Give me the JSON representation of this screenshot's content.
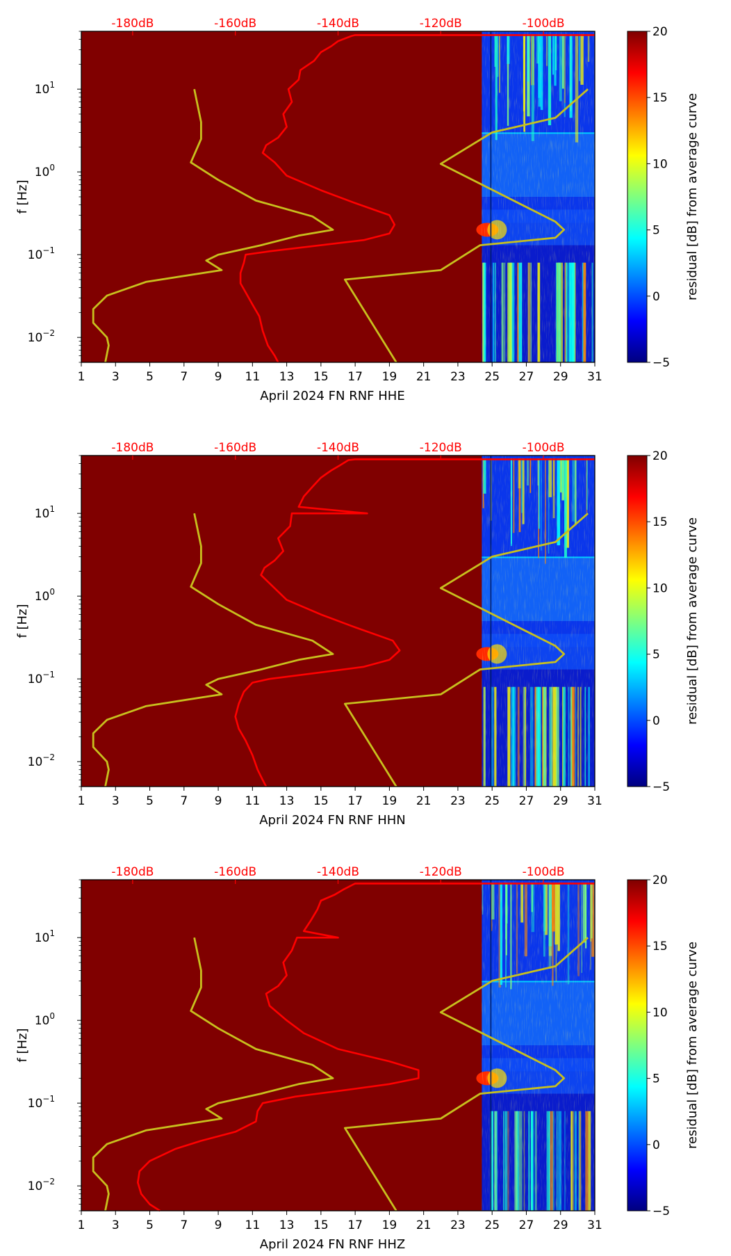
{
  "colors": {
    "background": "#800000",
    "psd_curve": "#ff0000",
    "noise_model": "#c8c01e",
    "top_axis": "#ff0000",
    "colormap": [
      "#00007f",
      "#0000ff",
      "#007fff",
      "#00ffff",
      "#7fff7f",
      "#ffff00",
      "#ff7f00",
      "#ff0000",
      "#7f0000"
    ]
  },
  "chart_data": [
    {
      "type": "heatmap",
      "panel": 1,
      "xlabel": "April 2024 FN RNF  HHE",
      "ylabel": "f [Hz]",
      "xlim": [
        1,
        31
      ],
      "ylim_hz": [
        0.005,
        50
      ],
      "x_ticks": [
        "1",
        "3",
        "5",
        "7",
        "9",
        "11",
        "13",
        "15",
        "17",
        "19",
        "21",
        "23",
        "25",
        "27",
        "29",
        "31"
      ],
      "y_ticks": [
        {
          "value": 0.01,
          "base": "10",
          "exp": "−2"
        },
        {
          "value": 0.1,
          "base": "10",
          "exp": "−1"
        },
        {
          "value": 1,
          "base": "10",
          "exp": "0"
        },
        {
          "value": 10,
          "base": "10",
          "exp": "1"
        }
      ],
      "top_axis": {
        "labels": [
          "-180dB",
          "-160dB",
          "-140dB",
          "-120dB",
          "-100dB"
        ],
        "values": [
          -180,
          -160,
          -140,
          -120,
          -100
        ],
        "db_range": [
          -190,
          -90
        ]
      },
      "data_start_day": 24.4,
      "colorbar": {
        "label": "residual [dB] from average curve",
        "min": -5,
        "max": 20,
        "ticks": [
          "20",
          "15",
          "10",
          "5",
          "0",
          "−5"
        ]
      },
      "psd_curve": [
        [
          12.5,
          0.005
        ],
        [
          12.3,
          0.006
        ],
        [
          11.9,
          0.008
        ],
        [
          11.6,
          0.012
        ],
        [
          11.4,
          0.018
        ],
        [
          11.0,
          0.025
        ],
        [
          10.6,
          0.035
        ],
        [
          10.3,
          0.045
        ],
        [
          10.3,
          0.06
        ],
        [
          10.5,
          0.08
        ],
        [
          10.6,
          0.1
        ],
        [
          12,
          0.11
        ],
        [
          15,
          0.13
        ],
        [
          17.5,
          0.15
        ],
        [
          19,
          0.18
        ],
        [
          19.3,
          0.23
        ],
        [
          19,
          0.3
        ],
        [
          17,
          0.42
        ],
        [
          15,
          0.6
        ],
        [
          13,
          0.9
        ],
        [
          12.3,
          1.3
        ],
        [
          11.6,
          1.7
        ],
        [
          11.8,
          2.1
        ],
        [
          12.5,
          2.6
        ],
        [
          13,
          3.5
        ],
        [
          12.8,
          5
        ],
        [
          13.3,
          7
        ],
        [
          13.1,
          10
        ],
        [
          13.7,
          13
        ],
        [
          13.8,
          17
        ],
        [
          14.6,
          22
        ],
        [
          15,
          28
        ],
        [
          15.6,
          33
        ],
        [
          16,
          38
        ],
        [
          16.8,
          44
        ],
        [
          17,
          45
        ],
        [
          31,
          45
        ]
      ],
      "noise_model_low": [
        [
          2.4,
          0.005
        ],
        [
          2.6,
          0.008
        ],
        [
          2.5,
          0.01
        ],
        [
          1.7,
          0.015
        ],
        [
          1.7,
          0.022
        ],
        [
          2.5,
          0.032
        ],
        [
          4.8,
          0.047
        ],
        [
          9.2,
          0.065
        ],
        [
          8.3,
          0.085
        ],
        [
          9,
          0.1
        ],
        [
          11.5,
          0.13
        ],
        [
          13.7,
          0.17
        ],
        [
          15.7,
          0.2
        ],
        [
          14.5,
          0.29
        ],
        [
          11.2,
          0.45
        ],
        [
          9,
          0.8
        ],
        [
          7.4,
          1.3
        ],
        [
          8,
          2.5
        ],
        [
          8,
          4
        ],
        [
          7.6,
          10
        ]
      ],
      "noise_model_high": [
        [
          19.4,
          0.005
        ],
        [
          16.4,
          0.05
        ],
        [
          22,
          0.065
        ],
        [
          24.3,
          0.13
        ],
        [
          28.7,
          0.16
        ],
        [
          29.2,
          0.2
        ],
        [
          28.7,
          0.25
        ],
        [
          22,
          1.25
        ],
        [
          25,
          3
        ],
        [
          28.7,
          4.5
        ],
        [
          30.6,
          10
        ]
      ]
    },
    {
      "type": "heatmap",
      "panel": 2,
      "xlabel": "April 2024 FN RNF  HHN",
      "ylabel": "f [Hz]",
      "xlim": [
        1,
        31
      ],
      "ylim_hz": [
        0.005,
        50
      ],
      "x_ticks": [
        "1",
        "3",
        "5",
        "7",
        "9",
        "11",
        "13",
        "15",
        "17",
        "19",
        "21",
        "23",
        "25",
        "27",
        "29",
        "31"
      ],
      "y_ticks": [
        {
          "value": 0.01,
          "base": "10",
          "exp": "−2"
        },
        {
          "value": 0.1,
          "base": "10",
          "exp": "−1"
        },
        {
          "value": 1,
          "base": "10",
          "exp": "0"
        },
        {
          "value": 10,
          "base": "10",
          "exp": "1"
        }
      ],
      "top_axis": {
        "labels": [
          "-180dB",
          "-160dB",
          "-140dB",
          "-120dB",
          "-100dB"
        ],
        "values": [
          -180,
          -160,
          -140,
          -120,
          -100
        ],
        "db_range": [
          -190,
          -90
        ]
      },
      "data_start_day": 24.4,
      "colorbar": {
        "label": "residual [dB] from average curve",
        "min": -5,
        "max": 20,
        "ticks": [
          "20",
          "15",
          "10",
          "5",
          "0",
          "−5"
        ]
      },
      "psd_curve": [
        [
          11.8,
          0.005
        ],
        [
          11.6,
          0.006
        ],
        [
          11.3,
          0.008
        ],
        [
          11,
          0.012
        ],
        [
          10.6,
          0.018
        ],
        [
          10.2,
          0.025
        ],
        [
          10,
          0.035
        ],
        [
          10.2,
          0.05
        ],
        [
          10.5,
          0.07
        ],
        [
          11,
          0.09
        ],
        [
          12,
          0.1
        ],
        [
          15,
          0.12
        ],
        [
          17.5,
          0.14
        ],
        [
          19,
          0.17
        ],
        [
          19.6,
          0.22
        ],
        [
          19.2,
          0.29
        ],
        [
          17,
          0.42
        ],
        [
          15,
          0.6
        ],
        [
          13,
          0.9
        ],
        [
          12.2,
          1.3
        ],
        [
          11.5,
          1.8
        ],
        [
          11.7,
          2.2
        ],
        [
          12.3,
          2.7
        ],
        [
          12.8,
          3.5
        ],
        [
          12.5,
          5
        ],
        [
          13.2,
          7
        ],
        [
          13.3,
          10
        ],
        [
          17.7,
          10
        ],
        [
          13.7,
          12
        ],
        [
          14,
          16
        ],
        [
          14.6,
          22
        ],
        [
          15,
          27
        ],
        [
          15.6,
          33
        ],
        [
          16.1,
          38
        ],
        [
          16.6,
          44
        ],
        [
          17,
          45
        ],
        [
          31,
          45
        ]
      ],
      "noise_model_low": [
        [
          2.4,
          0.005
        ],
        [
          2.6,
          0.008
        ],
        [
          2.5,
          0.01
        ],
        [
          1.7,
          0.015
        ],
        [
          1.7,
          0.022
        ],
        [
          2.5,
          0.032
        ],
        [
          4.8,
          0.047
        ],
        [
          9.2,
          0.065
        ],
        [
          8.3,
          0.085
        ],
        [
          9,
          0.1
        ],
        [
          11.5,
          0.13
        ],
        [
          13.7,
          0.17
        ],
        [
          15.7,
          0.2
        ],
        [
          14.5,
          0.29
        ],
        [
          11.2,
          0.45
        ],
        [
          9,
          0.8
        ],
        [
          7.4,
          1.3
        ],
        [
          8,
          2.5
        ],
        [
          8,
          4
        ],
        [
          7.6,
          10
        ]
      ],
      "noise_model_high": [
        [
          19.4,
          0.005
        ],
        [
          16.4,
          0.05
        ],
        [
          22,
          0.065
        ],
        [
          24.3,
          0.13
        ],
        [
          28.7,
          0.16
        ],
        [
          29.2,
          0.2
        ],
        [
          28.7,
          0.25
        ],
        [
          22,
          1.25
        ],
        [
          25,
          3
        ],
        [
          28.7,
          4.5
        ],
        [
          30.6,
          10
        ]
      ]
    },
    {
      "type": "heatmap",
      "panel": 3,
      "xlabel": "April 2024 FN RNF  HHZ",
      "ylabel": "f [Hz]",
      "xlim": [
        1,
        31
      ],
      "ylim_hz": [
        0.005,
        50
      ],
      "x_ticks": [
        "1",
        "3",
        "5",
        "7",
        "9",
        "11",
        "13",
        "15",
        "17",
        "19",
        "21",
        "23",
        "25",
        "27",
        "29",
        "31"
      ],
      "y_ticks": [
        {
          "value": 0.01,
          "base": "10",
          "exp": "−2"
        },
        {
          "value": 0.1,
          "base": "10",
          "exp": "−1"
        },
        {
          "value": 1,
          "base": "10",
          "exp": "0"
        },
        {
          "value": 10,
          "base": "10",
          "exp": "1"
        }
      ],
      "top_axis": {
        "labels": [
          "-180dB",
          "-160dB",
          "-140dB",
          "-120dB",
          "-100dB"
        ],
        "values": [
          -180,
          -160,
          -140,
          -120,
          -100
        ],
        "db_range": [
          -190,
          -90
        ]
      },
      "data_start_day": 24.4,
      "colorbar": {
        "label": "residual [dB] from average curve",
        "min": -5,
        "max": 20,
        "ticks": [
          "20",
          "15",
          "10",
          "5",
          "0",
          "−5"
        ]
      },
      "psd_curve": [
        [
          5.6,
          0.005
        ],
        [
          5,
          0.006
        ],
        [
          4.5,
          0.008
        ],
        [
          4.3,
          0.011
        ],
        [
          4.4,
          0.015
        ],
        [
          5,
          0.02
        ],
        [
          6.5,
          0.028
        ],
        [
          8,
          0.035
        ],
        [
          10,
          0.045
        ],
        [
          11.2,
          0.06
        ],
        [
          11.3,
          0.08
        ],
        [
          11.6,
          0.1
        ],
        [
          13.5,
          0.12
        ],
        [
          16,
          0.14
        ],
        [
          19,
          0.17
        ],
        [
          20.7,
          0.2
        ],
        [
          20.7,
          0.25
        ],
        [
          19,
          0.32
        ],
        [
          16,
          0.45
        ],
        [
          14,
          0.7
        ],
        [
          13,
          1
        ],
        [
          12,
          1.5
        ],
        [
          11.8,
          2.1
        ],
        [
          12.5,
          2.6
        ],
        [
          13,
          3.5
        ],
        [
          12.8,
          5
        ],
        [
          13.3,
          7
        ],
        [
          13.6,
          10
        ],
        [
          16,
          10
        ],
        [
          14,
          12
        ],
        [
          14.4,
          16
        ],
        [
          14.8,
          22
        ],
        [
          15,
          28
        ],
        [
          15.8,
          33
        ],
        [
          16.3,
          38
        ],
        [
          16.9,
          44
        ],
        [
          17,
          45
        ],
        [
          31,
          45
        ]
      ],
      "noise_model_low": [
        [
          2.4,
          0.005
        ],
        [
          2.6,
          0.008
        ],
        [
          2.5,
          0.01
        ],
        [
          1.7,
          0.015
        ],
        [
          1.7,
          0.022
        ],
        [
          2.5,
          0.032
        ],
        [
          4.8,
          0.047
        ],
        [
          9.2,
          0.065
        ],
        [
          8.3,
          0.085
        ],
        [
          9,
          0.1
        ],
        [
          11.5,
          0.13
        ],
        [
          13.7,
          0.17
        ],
        [
          15.7,
          0.2
        ],
        [
          14.5,
          0.29
        ],
        [
          11.2,
          0.45
        ],
        [
          9,
          0.8
        ],
        [
          7.4,
          1.3
        ],
        [
          8,
          2.5
        ],
        [
          8,
          4
        ],
        [
          7.6,
          10
        ]
      ],
      "noise_model_high": [
        [
          19.4,
          0.005
        ],
        [
          16.4,
          0.05
        ],
        [
          22,
          0.065
        ],
        [
          24.3,
          0.13
        ],
        [
          28.7,
          0.16
        ],
        [
          29.2,
          0.2
        ],
        [
          28.7,
          0.25
        ],
        [
          22,
          1.25
        ],
        [
          25,
          3
        ],
        [
          28.7,
          4.5
        ],
        [
          30.6,
          10
        ]
      ]
    }
  ]
}
